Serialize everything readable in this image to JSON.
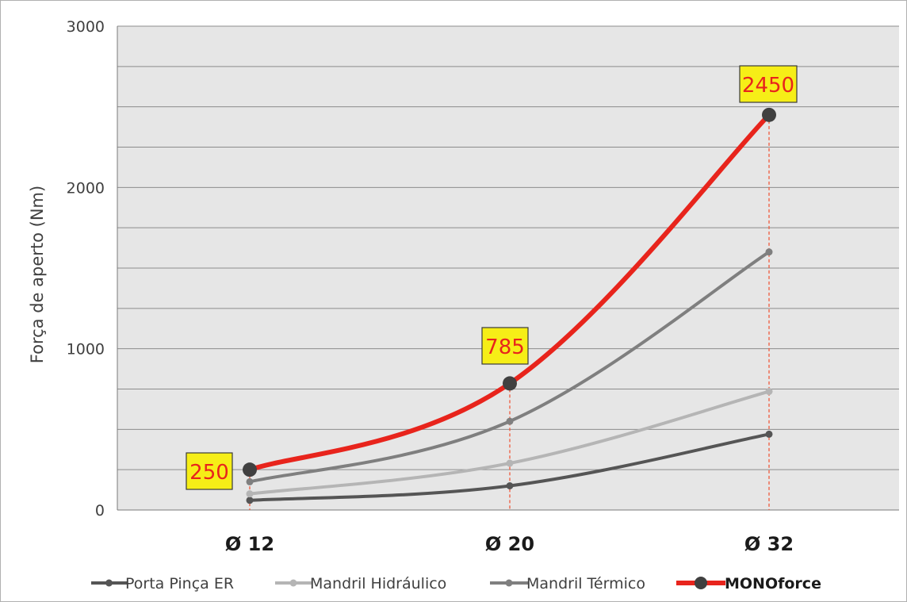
{
  "chart_data": {
    "type": "line",
    "title": "",
    "xlabel": "",
    "ylabel": "Força de aperto  (Nm)",
    "categories": [
      "Ø 12",
      "Ø 20",
      "Ø 32"
    ],
    "ylim": [
      0,
      3000
    ],
    "yticks": [
      0,
      1000,
      2000,
      3000
    ],
    "grid": true,
    "legend_position": "bottom",
    "series": [
      {
        "name": "Porta Pinça ER",
        "values": [
          60,
          150,
          470
        ],
        "color": "#555555"
      },
      {
        "name": "Mandril Hidráulico",
        "values": [
          100,
          290,
          735
        ],
        "color": "#b5b5b5"
      },
      {
        "name": "Mandril Térmico",
        "values": [
          175,
          550,
          1600
        ],
        "color": "#7f7f7f"
      },
      {
        "name": "MONOforce",
        "values": [
          250,
          785,
          2450
        ],
        "color": "#e8241c",
        "emphasis": true
      }
    ],
    "annotations": [
      "250",
      "785",
      "2450"
    ],
    "colors": {
      "plot_background": "#e6e6e6",
      "gridline": "#8c8c8c",
      "callout_fill": "#f6ee17",
      "callout_text": "#e8241c",
      "dropline": "#ef5a3c",
      "marker_emphasis": "#404040"
    }
  }
}
